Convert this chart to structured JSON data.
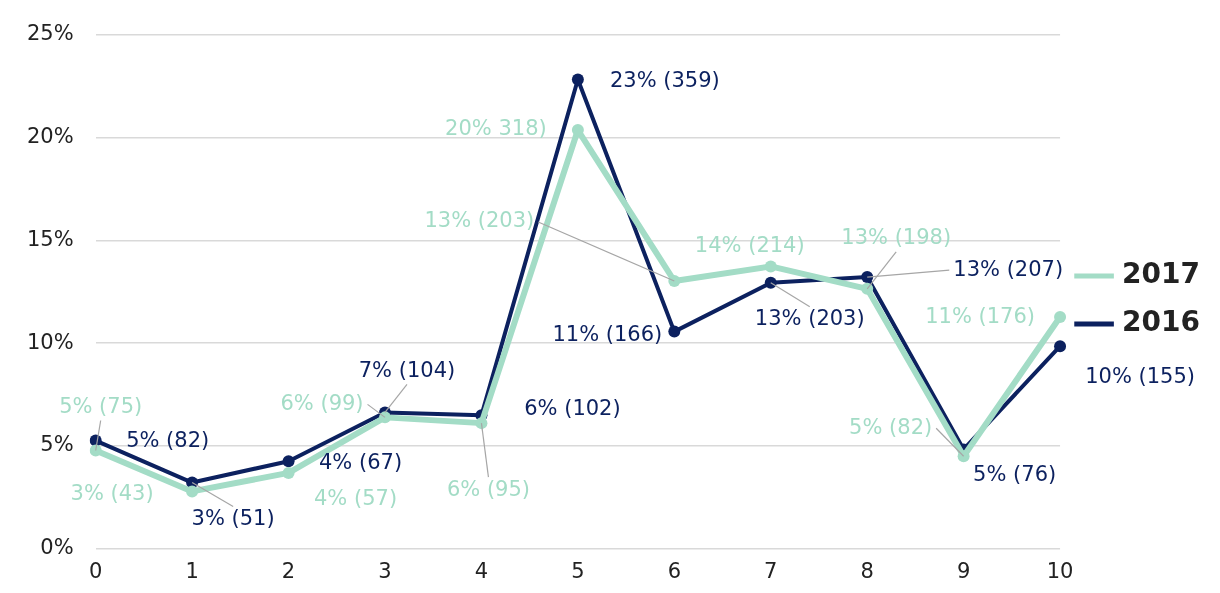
{
  "chart_data": {
    "type": "line",
    "categories": [
      "0",
      "1",
      "2",
      "3",
      "4",
      "5",
      "6",
      "7",
      "8",
      "9",
      "10"
    ],
    "series": [
      {
        "name": "2017",
        "color": "#a3dcc6",
        "values": [
          4.78,
          2.79,
          3.69,
          6.39,
          6.11,
          20.36,
          13.02,
          13.73,
          12.64,
          4.5,
          11.27
        ],
        "value_labels": [
          "5% (75)",
          "3% (43)",
          "4% (57)",
          "6% (99)",
          "6% (95)",
          "20% 318)",
          "13% (203)",
          "14% (214)",
          "13% (198)",
          "5% (82)",
          "11% (176)"
        ]
      },
      {
        "name": "2016",
        "color": "#0c215f",
        "values": [
          5.26,
          3.22,
          4.26,
          6.63,
          6.49,
          22.82,
          10.56,
          12.93,
          13.21,
          4.83,
          9.85
        ],
        "value_labels": [
          "5% (82)",
          "3% (51)",
          "4% (67)",
          "7% (104)",
          "6% (102)",
          "23% (359)",
          "11% (166)",
          "13% (203)",
          "13% (207)",
          "5% (76)",
          "10% (155)"
        ]
      }
    ],
    "ylim": [
      0,
      25
    ],
    "yticks": [
      {
        "value": 0,
        "label": "0%"
      },
      {
        "value": 5,
        "label": "5%"
      },
      {
        "value": 10,
        "label": "10%"
      },
      {
        "value": 15,
        "label": "15%"
      },
      {
        "value": 20,
        "label": "20%"
      },
      {
        "value": 25,
        "label": "25%"
      }
    ],
    "grid": "y",
    "legend": "right",
    "marker": "circle",
    "line_style": "solid"
  }
}
